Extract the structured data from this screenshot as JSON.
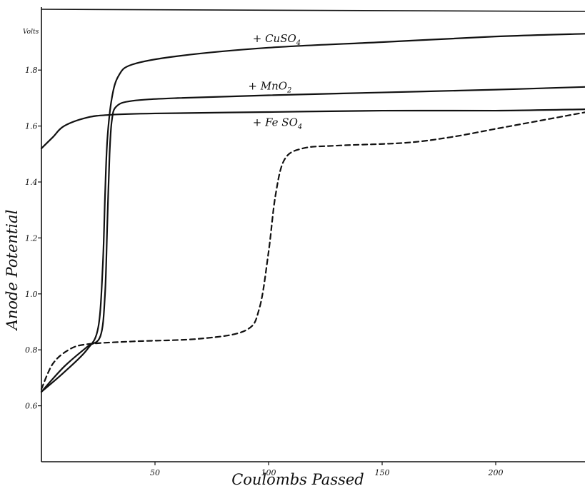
{
  "chart_data": {
    "type": "line",
    "title": "",
    "xlabel": "Coulombs Passed",
    "ylabel": "Anode Potential",
    "y_unit": "Volts",
    "xlim": [
      0,
      240
    ],
    "ylim": [
      0.4,
      2.0
    ],
    "x_ticks": [
      50,
      100,
      150,
      200
    ],
    "y_ticks": [
      0.6,
      0.8,
      1.0,
      1.2,
      1.4,
      1.6,
      1.8
    ],
    "y_tick_labels": [
      "0.6",
      "0.8",
      "1.0",
      "1.2",
      "1.4",
      "1.6",
      "1.8"
    ],
    "grid": false,
    "series": [
      {
        "name": "+ CuSO4",
        "style": "solid",
        "color": "#111111",
        "points": [
          [
            0,
            0.65
          ],
          [
            10,
            0.72
          ],
          [
            20,
            0.8
          ],
          [
            25,
            0.88
          ],
          [
            27,
            1.1
          ],
          [
            28,
            1.35
          ],
          [
            29,
            1.55
          ],
          [
            31,
            1.7
          ],
          [
            34,
            1.78
          ],
          [
            40,
            1.82
          ],
          [
            60,
            1.85
          ],
          [
            100,
            1.88
          ],
          [
            150,
            1.9
          ],
          [
            200,
            1.92
          ],
          [
            240,
            1.93
          ]
        ]
      },
      {
        "name": "+ MnO2",
        "style": "solid",
        "color": "#111111",
        "points": [
          [
            0,
            0.65
          ],
          [
            10,
            0.74
          ],
          [
            20,
            0.81
          ],
          [
            26,
            0.85
          ],
          [
            28,
            1.0
          ],
          [
            29,
            1.25
          ],
          [
            30,
            1.5
          ],
          [
            31,
            1.62
          ],
          [
            33,
            1.67
          ],
          [
            40,
            1.69
          ],
          [
            60,
            1.7
          ],
          [
            100,
            1.71
          ],
          [
            150,
            1.72
          ],
          [
            200,
            1.73
          ],
          [
            240,
            1.74
          ]
        ]
      },
      {
        "name": "+ Fe SO4",
        "style": "solid",
        "color": "#111111",
        "points": [
          [
            0,
            1.52
          ],
          [
            5,
            1.56
          ],
          [
            10,
            1.6
          ],
          [
            20,
            1.63
          ],
          [
            30,
            1.64
          ],
          [
            50,
            1.645
          ],
          [
            100,
            1.65
          ],
          [
            150,
            1.655
          ],
          [
            200,
            1.655
          ],
          [
            240,
            1.66
          ]
        ]
      },
      {
        "name": "",
        "style": "dashed",
        "color": "#111111",
        "points": [
          [
            0,
            0.66
          ],
          [
            5,
            0.75
          ],
          [
            12,
            0.8
          ],
          [
            20,
            0.82
          ],
          [
            40,
            0.83
          ],
          [
            70,
            0.84
          ],
          [
            90,
            0.87
          ],
          [
            96,
            0.95
          ],
          [
            100,
            1.15
          ],
          [
            103,
            1.35
          ],
          [
            107,
            1.48
          ],
          [
            115,
            1.52
          ],
          [
            130,
            1.53
          ],
          [
            160,
            1.54
          ],
          [
            180,
            1.56
          ],
          [
            200,
            1.59
          ],
          [
            220,
            1.62
          ],
          [
            240,
            1.65
          ]
        ]
      }
    ],
    "series_labels": [
      {
        "text": "+ CuSO",
        "sub": "4",
        "x": 93,
        "y": 1.9
      },
      {
        "text": "+ MnO",
        "sub": "2",
        "x": 91,
        "y": 1.73
      },
      {
        "text": "+ Fe SO",
        "sub": "4",
        "x": 93,
        "y": 1.6
      }
    ]
  }
}
